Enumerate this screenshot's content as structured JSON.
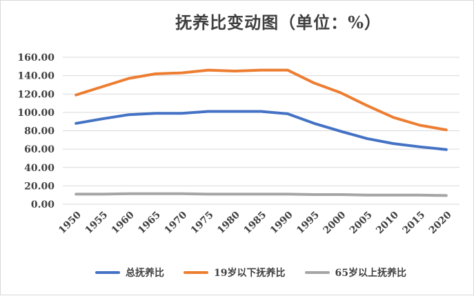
{
  "chart_data": {
    "type": "line",
    "title": "抚养比变动图（单位：%）",
    "x": [
      "1950",
      "1955",
      "1960",
      "1965",
      "1970",
      "1975",
      "1980",
      "1985",
      "1990",
      "1995",
      "2000",
      "2005",
      "2010",
      "2015",
      "2020"
    ],
    "ylim": [
      0,
      160
    ],
    "yticks": [
      "0.00",
      "20.00",
      "40.00",
      "60.00",
      "80.00",
      "100.00",
      "120.00",
      "140.00",
      "160.00"
    ],
    "grid": true,
    "legend_position": "bottom",
    "series": [
      {
        "name": "总抚养比",
        "color": "#4472c4",
        "values": [
          88,
          93,
          97.5,
          99,
          99,
          101,
          101,
          101,
          98.5,
          88,
          79.5,
          71.5,
          66,
          62.5,
          59.5
        ]
      },
      {
        "name": "19岁以下抚养比",
        "color": "#ed7d31",
        "values": [
          119,
          128,
          137,
          142,
          143,
          146,
          145,
          146,
          146,
          132,
          121.5,
          107.5,
          94.5,
          86,
          81
        ]
      },
      {
        "name": "65岁以上抚养比",
        "color": "#a5a5a5",
        "values": [
          11,
          11,
          11.5,
          11.5,
          11.5,
          11,
          11,
          11,
          11,
          10.5,
          10.5,
          10,
          10,
          10,
          9.5
        ]
      }
    ]
  }
}
